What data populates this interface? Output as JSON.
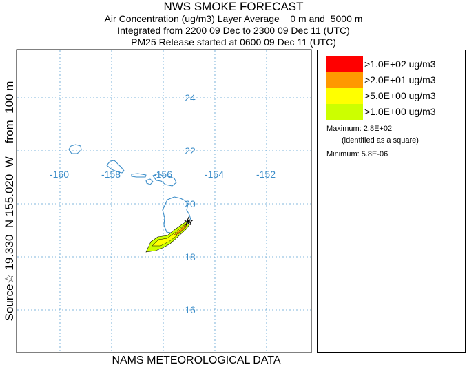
{
  "title": {
    "main": "NWS SMOKE FORECAST",
    "line1": "Air Concentration (ug/m3) Layer Average    0 m and  5000 m",
    "line2": "Integrated from 2200 09 Dec to 2300 09 Dec 11 (UTC)",
    "line3": "PM25 Release started at 0600 09 Dec 11 (UTC)"
  },
  "side_label": "Source☆ 19.330  N 155.020  W    from  100 m",
  "footer": "NAMS METEOROLOGICAL DATA",
  "map": {
    "lon_labels": [
      "-160",
      "-158",
      "-156",
      "-154",
      "-152"
    ],
    "lat_labels": [
      "24",
      "22",
      "20",
      "18",
      "16"
    ],
    "grid_color": "#5aa0d2",
    "coast_color": "#3a8cc8",
    "label_color": "#3a8cc8",
    "source": {
      "lat": 19.33,
      "lon": -155.02,
      "marker": "star-icon"
    }
  },
  "legend": {
    "items": [
      {
        "label": ">1.0E+02 ug/m3",
        "color": "#ff0000"
      },
      {
        "label": ">2.0E+01 ug/m3",
        "color": "#ff9900"
      },
      {
        "label": ">5.0E+00 ug/m3",
        "color": "#ffff00"
      },
      {
        "label": ">1.0E+00 ug/m3",
        "color": "#ccff00"
      }
    ],
    "maximum": "Maximum: 2.8E+02",
    "max_note": "(identified as a square)",
    "minimum": "Minimum: 5.8E-06"
  }
}
